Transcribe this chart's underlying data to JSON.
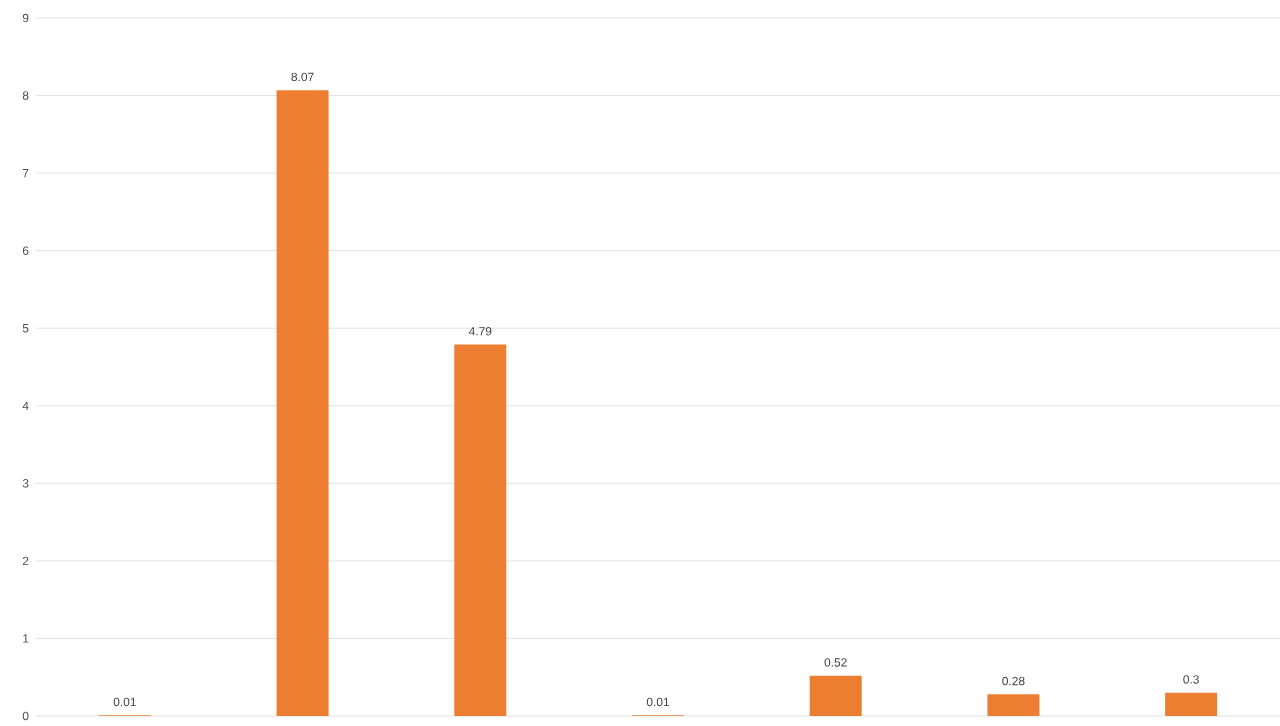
{
  "chart_data": {
    "type": "bar",
    "categories": [
      null,
      null,
      null,
      null,
      null,
      null,
      null
    ],
    "values": [
      0.01,
      8.07,
      4.79,
      0.01,
      0.52,
      0.28,
      0.3
    ],
    "color": "#ed7d31",
    "ylim": [
      0,
      9
    ],
    "yticks": [
      0,
      1,
      2,
      3,
      4,
      5,
      6,
      7,
      8,
      9
    ],
    "grid": "y",
    "data_labels": true
  }
}
